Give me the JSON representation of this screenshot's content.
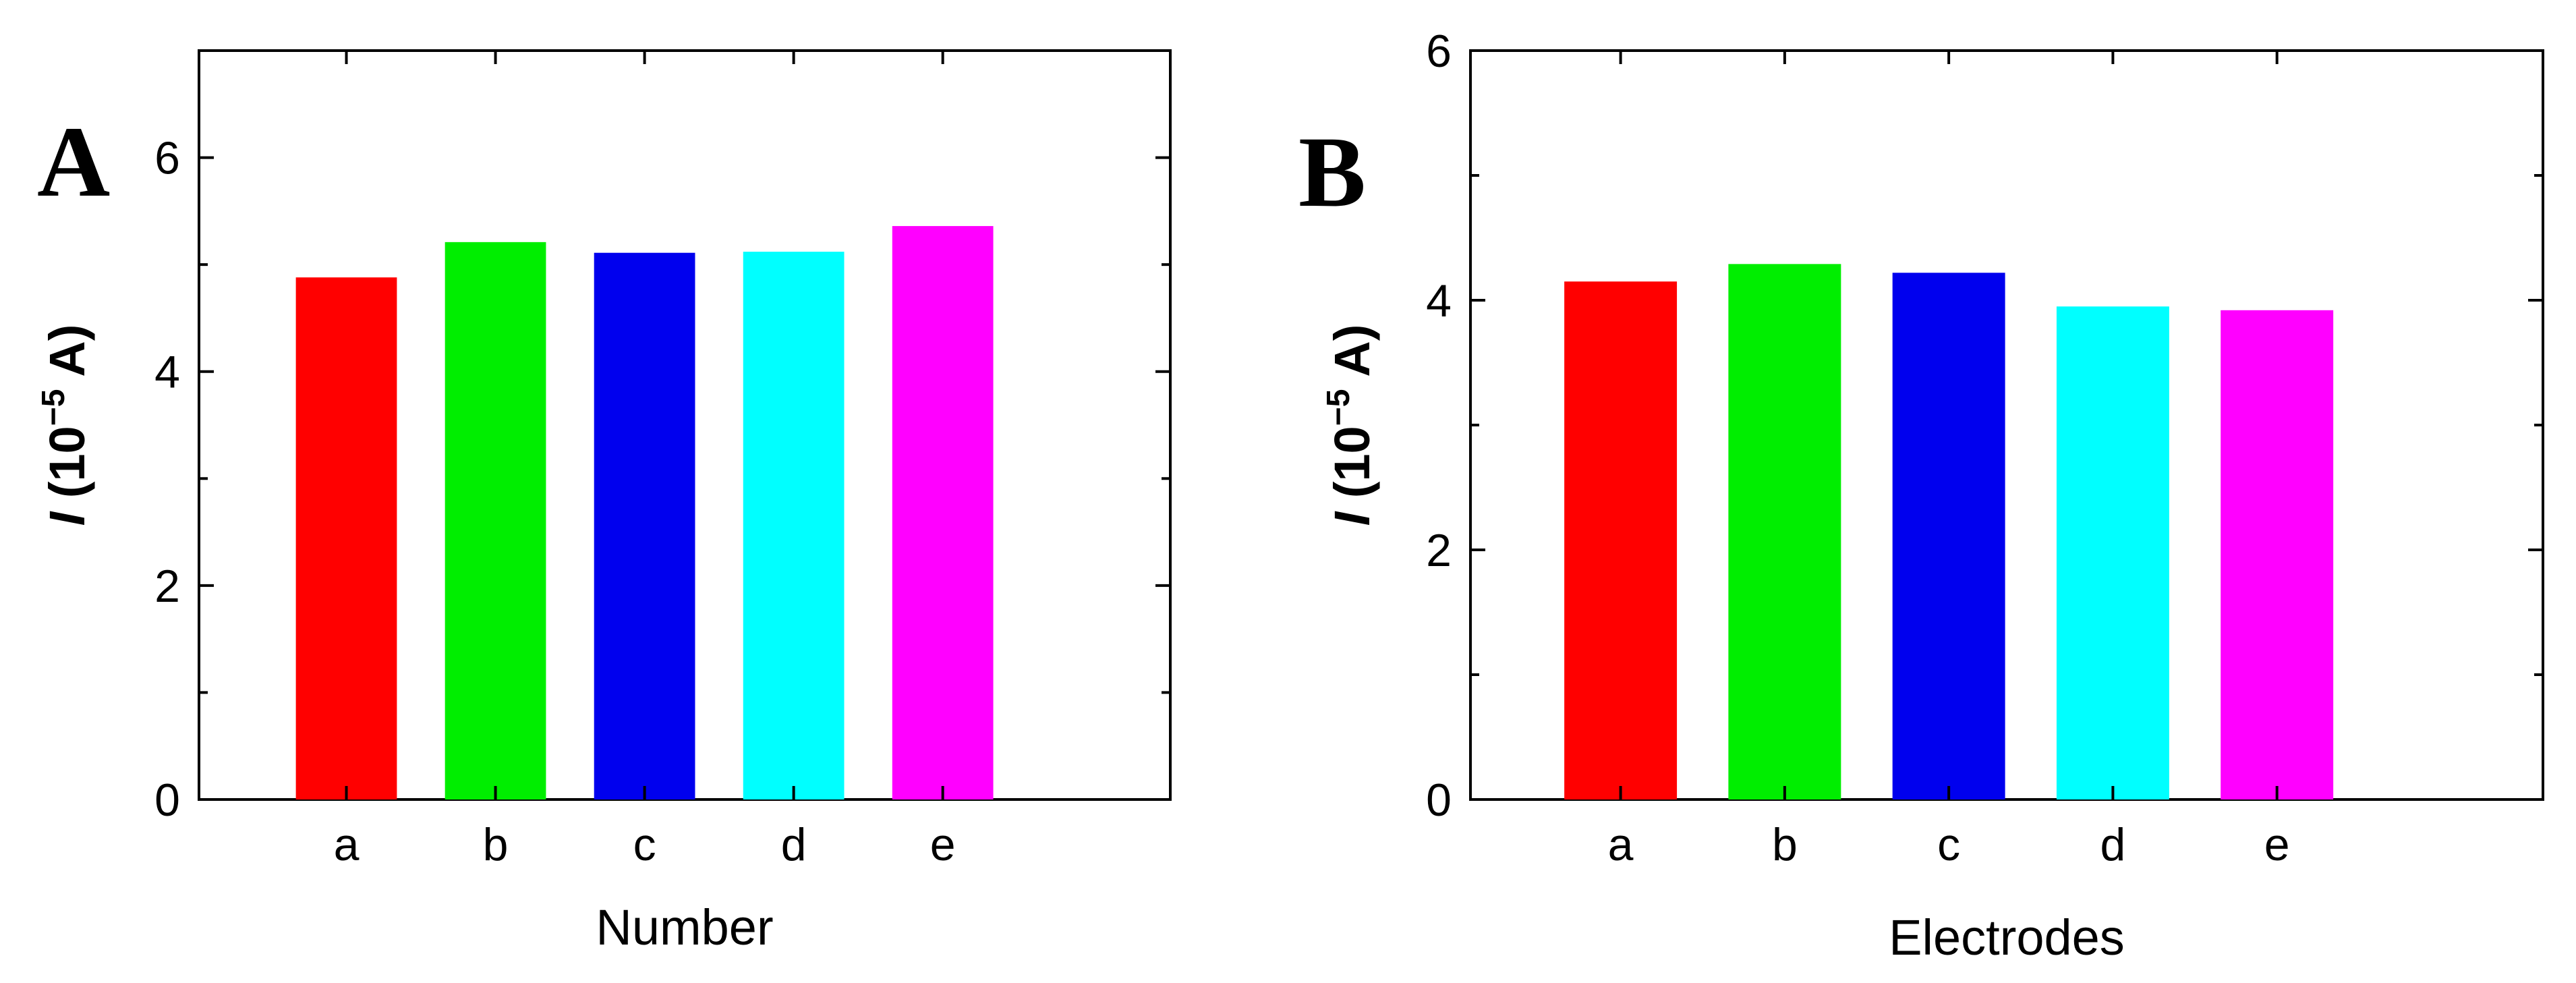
{
  "chart_data": [
    {
      "type": "bar",
      "panel_label": "A",
      "categories": [
        "a",
        "b",
        "c",
        "d",
        "e"
      ],
      "values": [
        4.88,
        5.21,
        5.11,
        5.12,
        5.36
      ],
      "colors": [
        "#ff0000",
        "#00ee00",
        "#0000ee",
        "#00ffff",
        "#ff00ff"
      ],
      "xlabel": "Number",
      "ylabel": {
        "italic": "I",
        "prefix": " (10",
        "sup": "−5",
        "suffix": " A)"
      },
      "ylim": [
        0,
        7
      ],
      "yticks": [
        0,
        2,
        4,
        6
      ],
      "ytick_labels": [
        "0",
        "2",
        "4",
        "6"
      ],
      "grid": false
    },
    {
      "type": "bar",
      "panel_label": "B",
      "categories": [
        "a",
        "b",
        "c",
        "d",
        "e"
      ],
      "values": [
        4.15,
        4.29,
        4.22,
        3.95,
        3.92
      ],
      "colors": [
        "#ff0000",
        "#00ee00",
        "#0000ee",
        "#00ffff",
        "#ff00ff"
      ],
      "xlabel": "Electrodes",
      "ylabel": {
        "italic": "I",
        "prefix": " (10",
        "sup": "−5",
        "suffix": " A)"
      },
      "ylim": [
        0,
        6
      ],
      "yticks": [
        0,
        2,
        4,
        6
      ],
      "ytick_labels": [
        "0",
        "2",
        "4",
        "6"
      ],
      "grid": false
    }
  ]
}
